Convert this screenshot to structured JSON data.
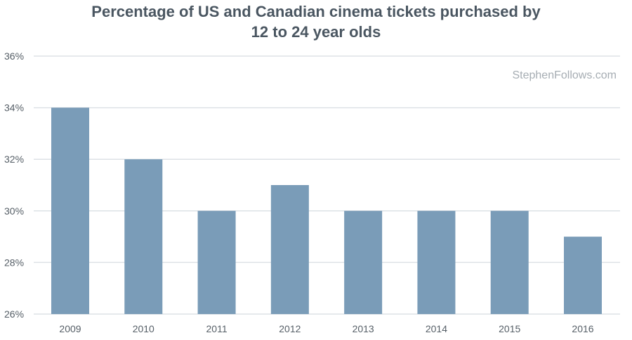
{
  "chart_data": {
    "type": "bar",
    "title_lines": [
      "Percentage of US and Canadian cinema tickets purchased by",
      "12 to 24 year olds"
    ],
    "watermark": "StephenFollows.com",
    "categories": [
      "2009",
      "2010",
      "2011",
      "2012",
      "2013",
      "2014",
      "2015",
      "2016"
    ],
    "values": [
      34,
      32,
      30,
      31,
      30,
      30,
      30,
      29
    ],
    "value_suffix": "%",
    "ylim": [
      26,
      36
    ],
    "yticks": [
      36,
      34,
      32,
      30,
      28,
      26
    ],
    "ytick_labels": [
      "36%",
      "34%",
      "32%",
      "30%",
      "28%",
      "26%"
    ],
    "grid": true,
    "colors": {
      "bar": "#7a9cb8",
      "grid": "#dde2e6",
      "title": "#4a5661",
      "axis_text": "#555e66",
      "watermark": "#a6adb3"
    }
  }
}
